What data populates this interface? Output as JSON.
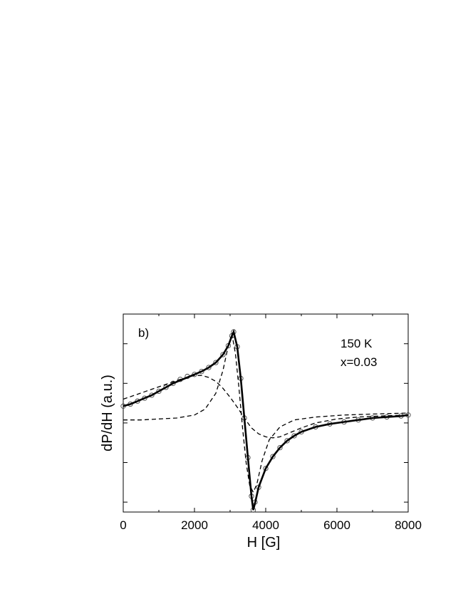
{
  "chart_data": {
    "type": "line",
    "panel_label": "b)",
    "annotations": [
      "150 K",
      "x=0.03"
    ],
    "xlabel": "H [G]",
    "ylabel": "dP/dH (a.u.)",
    "xlim": [
      0,
      8000
    ],
    "ylim": [
      -1.0,
      1.0
    ],
    "xticks": [
      0,
      2000,
      4000,
      6000,
      8000
    ],
    "xtick_labels": [
      "0",
      "2000",
      "4000",
      "6000",
      "8000"
    ],
    "yticks_unlabeled": [
      -0.9,
      -0.5,
      -0.1,
      0.3,
      0.7
    ],
    "grid": false,
    "legend": "none",
    "series": [
      {
        "style": "open-circles",
        "x": [
          0,
          200,
          400,
          600,
          800,
          1000,
          1200,
          1400,
          1600,
          1800,
          2000,
          2200,
          2400,
          2600,
          2800,
          2950,
          3050,
          3100,
          3200,
          3300,
          3400,
          3500,
          3600,
          3650,
          3700,
          3800,
          4000,
          4200,
          4400,
          4600,
          4800,
          5000,
          5400,
          5800,
          6200,
          6600,
          7000,
          7400,
          7800,
          8000
        ],
        "y": [
          0.07,
          0.09,
          0.12,
          0.15,
          0.18,
          0.22,
          0.26,
          0.3,
          0.34,
          0.37,
          0.39,
          0.42,
          0.46,
          0.51,
          0.59,
          0.68,
          0.78,
          0.82,
          0.67,
          0.35,
          -0.05,
          -0.45,
          -0.84,
          -0.98,
          -0.9,
          -0.75,
          -0.56,
          -0.44,
          -0.35,
          -0.28,
          -0.23,
          -0.19,
          -0.14,
          -0.11,
          -0.09,
          -0.07,
          -0.05,
          -0.04,
          -0.03,
          -0.02
        ]
      },
      {
        "style": "solid-thick",
        "x": [
          0,
          200,
          400,
          600,
          800,
          1000,
          1200,
          1400,
          1600,
          1800,
          2000,
          2200,
          2400,
          2600,
          2800,
          2950,
          3050,
          3100,
          3200,
          3300,
          3400,
          3500,
          3600,
          3650,
          3700,
          3800,
          4000,
          4200,
          4400,
          4600,
          4800,
          5000,
          5400,
          5800,
          6200,
          6600,
          7000,
          7400,
          7800,
          8000
        ],
        "y": [
          0.07,
          0.09,
          0.12,
          0.15,
          0.18,
          0.22,
          0.26,
          0.3,
          0.33,
          0.36,
          0.39,
          0.42,
          0.46,
          0.51,
          0.59,
          0.68,
          0.78,
          0.82,
          0.67,
          0.35,
          -0.05,
          -0.45,
          -0.84,
          -0.98,
          -0.91,
          -0.75,
          -0.56,
          -0.44,
          -0.35,
          -0.28,
          -0.23,
          -0.19,
          -0.14,
          -0.11,
          -0.09,
          -0.07,
          -0.05,
          -0.04,
          -0.03,
          -0.02
        ]
      },
      {
        "style": "dashed",
        "x": [
          0,
          400,
          800,
          1200,
          1600,
          2000,
          2200,
          2400,
          2600,
          2800,
          3000,
          3200,
          3400,
          3600,
          3800,
          4000,
          4200,
          4400,
          4600,
          5000,
          5400,
          6000,
          6600,
          7200,
          8000
        ],
        "y": [
          0.14,
          0.19,
          0.24,
          0.29,
          0.34,
          0.38,
          0.38,
          0.36,
          0.32,
          0.25,
          0.16,
          0.06,
          -0.05,
          -0.15,
          -0.21,
          -0.24,
          -0.25,
          -0.24,
          -0.21,
          -0.15,
          -0.1,
          -0.06,
          -0.04,
          -0.03,
          -0.02
        ]
      },
      {
        "style": "dashed",
        "x": [
          0,
          500,
          1000,
          1500,
          2000,
          2300,
          2600,
          2800,
          2950,
          3050,
          3150,
          3250,
          3350,
          3450,
          3550,
          3650,
          3750,
          3900,
          4100,
          4400,
          4800,
          5400,
          6200,
          7000,
          8000
        ],
        "y": [
          -0.07,
          -0.07,
          -0.06,
          -0.05,
          -0.02,
          0.04,
          0.2,
          0.43,
          0.68,
          0.8,
          0.6,
          0.25,
          -0.15,
          -0.5,
          -0.73,
          -0.8,
          -0.72,
          -0.48,
          -0.27,
          -0.14,
          -0.07,
          -0.04,
          -0.02,
          -0.01,
          0.0
        ]
      }
    ]
  }
}
